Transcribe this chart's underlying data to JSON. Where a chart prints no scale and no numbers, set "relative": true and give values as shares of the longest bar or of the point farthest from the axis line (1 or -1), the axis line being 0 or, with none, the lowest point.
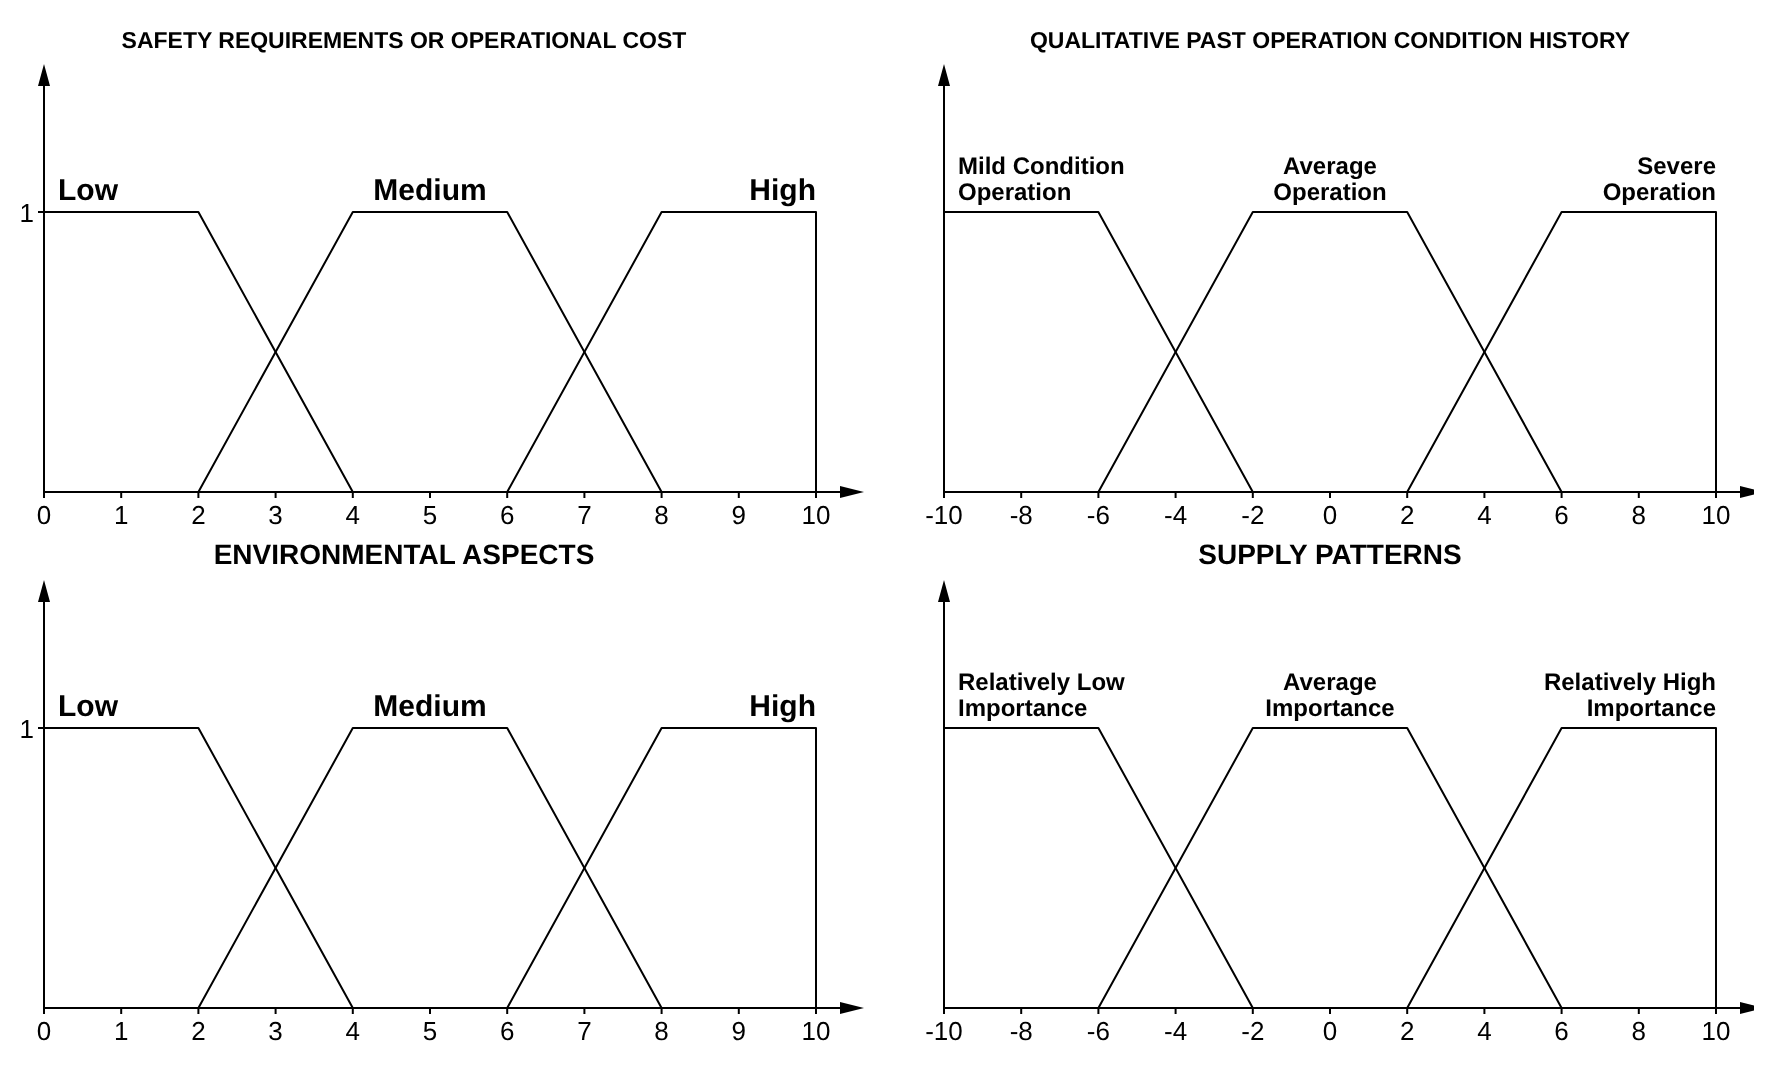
{
  "chart_data": [
    {
      "type": "line",
      "title": "SAFETY REQUIREMENTS OR OPERATIONAL COST",
      "xlim": [
        0,
        10
      ],
      "xticks": [
        0,
        1,
        2,
        3,
        4,
        5,
        6,
        7,
        8,
        9,
        10
      ],
      "relative": true,
      "tick_labels": "x",
      "annotations": [
        "1"
      ],
      "marker": "none",
      "line_style": "solid",
      "series": [
        {
          "name": "Low",
          "color": "#000000",
          "x": [
            0,
            2,
            4
          ],
          "values": [
            1,
            1,
            0
          ]
        },
        {
          "name": "Medium",
          "color": "#000000",
          "x": [
            2,
            4,
            6,
            8
          ],
          "values": [
            0,
            1,
            1,
            0
          ]
        },
        {
          "name": "High",
          "color": "#000000",
          "x": [
            6,
            8,
            10,
            10
          ],
          "values": [
            0,
            1,
            1,
            0
          ]
        }
      ]
    },
    {
      "type": "line",
      "title": "QUALITATIVE PAST OPERATION CONDITION HISTORY",
      "xlim": [
        -10,
        10
      ],
      "xticks": [
        -10,
        -8,
        -6,
        -4,
        -2,
        0,
        2,
        4,
        6,
        8,
        10
      ],
      "relative": true,
      "tick_labels": "x",
      "marker": "none",
      "line_style": "solid",
      "series": [
        {
          "name": "Mild Condition Operation",
          "color": "#000000",
          "x": [
            -10,
            -6,
            -2
          ],
          "values": [
            1,
            1,
            0
          ]
        },
        {
          "name": "Average Operation",
          "color": "#000000",
          "x": [
            -6,
            -2,
            2,
            6
          ],
          "values": [
            0,
            1,
            1,
            0
          ]
        },
        {
          "name": "Severe Operation",
          "color": "#000000",
          "x": [
            2,
            6,
            10,
            10
          ],
          "values": [
            0,
            1,
            1,
            0
          ]
        }
      ]
    },
    {
      "type": "line",
      "title": "ENVIRONMENTAL ASPECTS",
      "xlim": [
        0,
        10
      ],
      "xticks": [
        0,
        1,
        2,
        3,
        4,
        5,
        6,
        7,
        8,
        9,
        10
      ],
      "relative": true,
      "tick_labels": "x",
      "annotations": [
        "1"
      ],
      "marker": "none",
      "line_style": "solid",
      "series": [
        {
          "name": "Low",
          "color": "#000000",
          "x": [
            0,
            2,
            4
          ],
          "values": [
            1,
            1,
            0
          ]
        },
        {
          "name": "Medium",
          "color": "#000000",
          "x": [
            2,
            4,
            6,
            8
          ],
          "values": [
            0,
            1,
            1,
            0
          ]
        },
        {
          "name": "High",
          "color": "#000000",
          "x": [
            6,
            8,
            10,
            10
          ],
          "values": [
            0,
            1,
            1,
            0
          ]
        }
      ]
    },
    {
      "type": "line",
      "title": "SUPPLY PATTERNS",
      "xlim": [
        -10,
        10
      ],
      "xticks": [
        -10,
        -8,
        -6,
        -4,
        -2,
        0,
        2,
        4,
        6,
        8,
        10
      ],
      "relative": true,
      "tick_labels": "x",
      "marker": "none",
      "line_style": "solid",
      "series": [
        {
          "name": "Relatively Low Importance",
          "color": "#000000",
          "x": [
            -10,
            -6,
            -2
          ],
          "values": [
            1,
            1,
            0
          ]
        },
        {
          "name": "Average Importance",
          "color": "#000000",
          "x": [
            -6,
            -2,
            2,
            6
          ],
          "values": [
            0,
            1,
            1,
            0
          ]
        },
        {
          "name": "Relatively High Importance",
          "color": "#000000",
          "x": [
            2,
            6,
            10,
            10
          ],
          "values": [
            0,
            1,
            1,
            0
          ]
        }
      ]
    }
  ]
}
